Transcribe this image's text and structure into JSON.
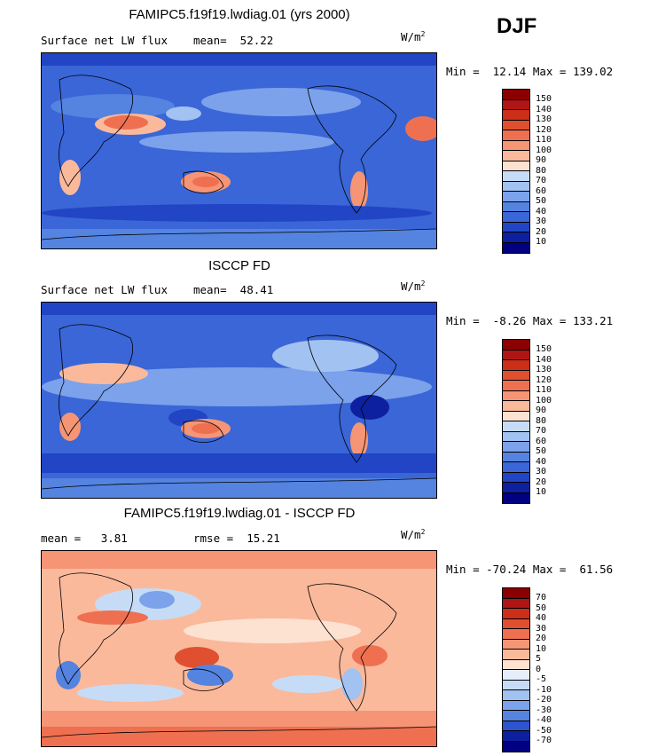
{
  "season": "DJF",
  "units_base": "W/m",
  "units_exp": "2",
  "panels": [
    {
      "title": "FAMIPC5.f19f19.lwdiag.01 (yrs 2000)",
      "left_text": "Surface net LW flux",
      "right_text": "mean=  52.22",
      "minmax": "Min =  12.14 Max = 139.02",
      "levels": [
        "150",
        "140",
        "130",
        "120",
        "110",
        "100",
        "90",
        "80",
        "70",
        "60",
        "50",
        "40",
        "30",
        "20",
        "10"
      ],
      "colors": [
        "#8b0000",
        "#b01515",
        "#cc2e18",
        "#e05030",
        "#ee7050",
        "#f59575",
        "#fbb99c",
        "#fde2d2",
        "#c6dcf6",
        "#a2c2f2",
        "#7ba2ea",
        "#5483e0",
        "#3a66d7",
        "#2145c4",
        "#0d20a0",
        "#000080"
      ]
    },
    {
      "title": "ISCCP FD",
      "left_text": "Surface net LW flux",
      "right_text": "mean=  48.41",
      "minmax": "Min =  -8.26 Max = 133.21",
      "levels": [
        "150",
        "140",
        "130",
        "120",
        "110",
        "100",
        "90",
        "80",
        "70",
        "60",
        "50",
        "40",
        "30",
        "20",
        "10"
      ],
      "colors": [
        "#8b0000",
        "#b01515",
        "#cc2e18",
        "#e05030",
        "#ee7050",
        "#f59575",
        "#fbb99c",
        "#fde2d2",
        "#c6dcf6",
        "#a2c2f2",
        "#7ba2ea",
        "#5483e0",
        "#3a66d7",
        "#2145c4",
        "#0d20a0",
        "#000080"
      ]
    },
    {
      "title": "FAMIPC5.f19f19.lwdiag.01 - ISCCP FD",
      "left_text": "mean =   3.81",
      "right_text": "rmse =  15.21",
      "minmax": "Min = -70.24 Max =  61.56",
      "levels": [
        "70",
        "50",
        "40",
        "30",
        "20",
        "10",
        "5",
        "0",
        "-5",
        "-10",
        "-20",
        "-30",
        "-40",
        "-50",
        "-70"
      ],
      "colors": [
        "#8b0000",
        "#b01515",
        "#cc2e18",
        "#e05030",
        "#ee7050",
        "#f59575",
        "#fbb99c",
        "#fde2d2",
        "#e6eefc",
        "#c6dcf6",
        "#a2c2f2",
        "#7ba2ea",
        "#5483e0",
        "#2e55d0",
        "#0d20a0",
        "#000080"
      ]
    }
  ]
}
